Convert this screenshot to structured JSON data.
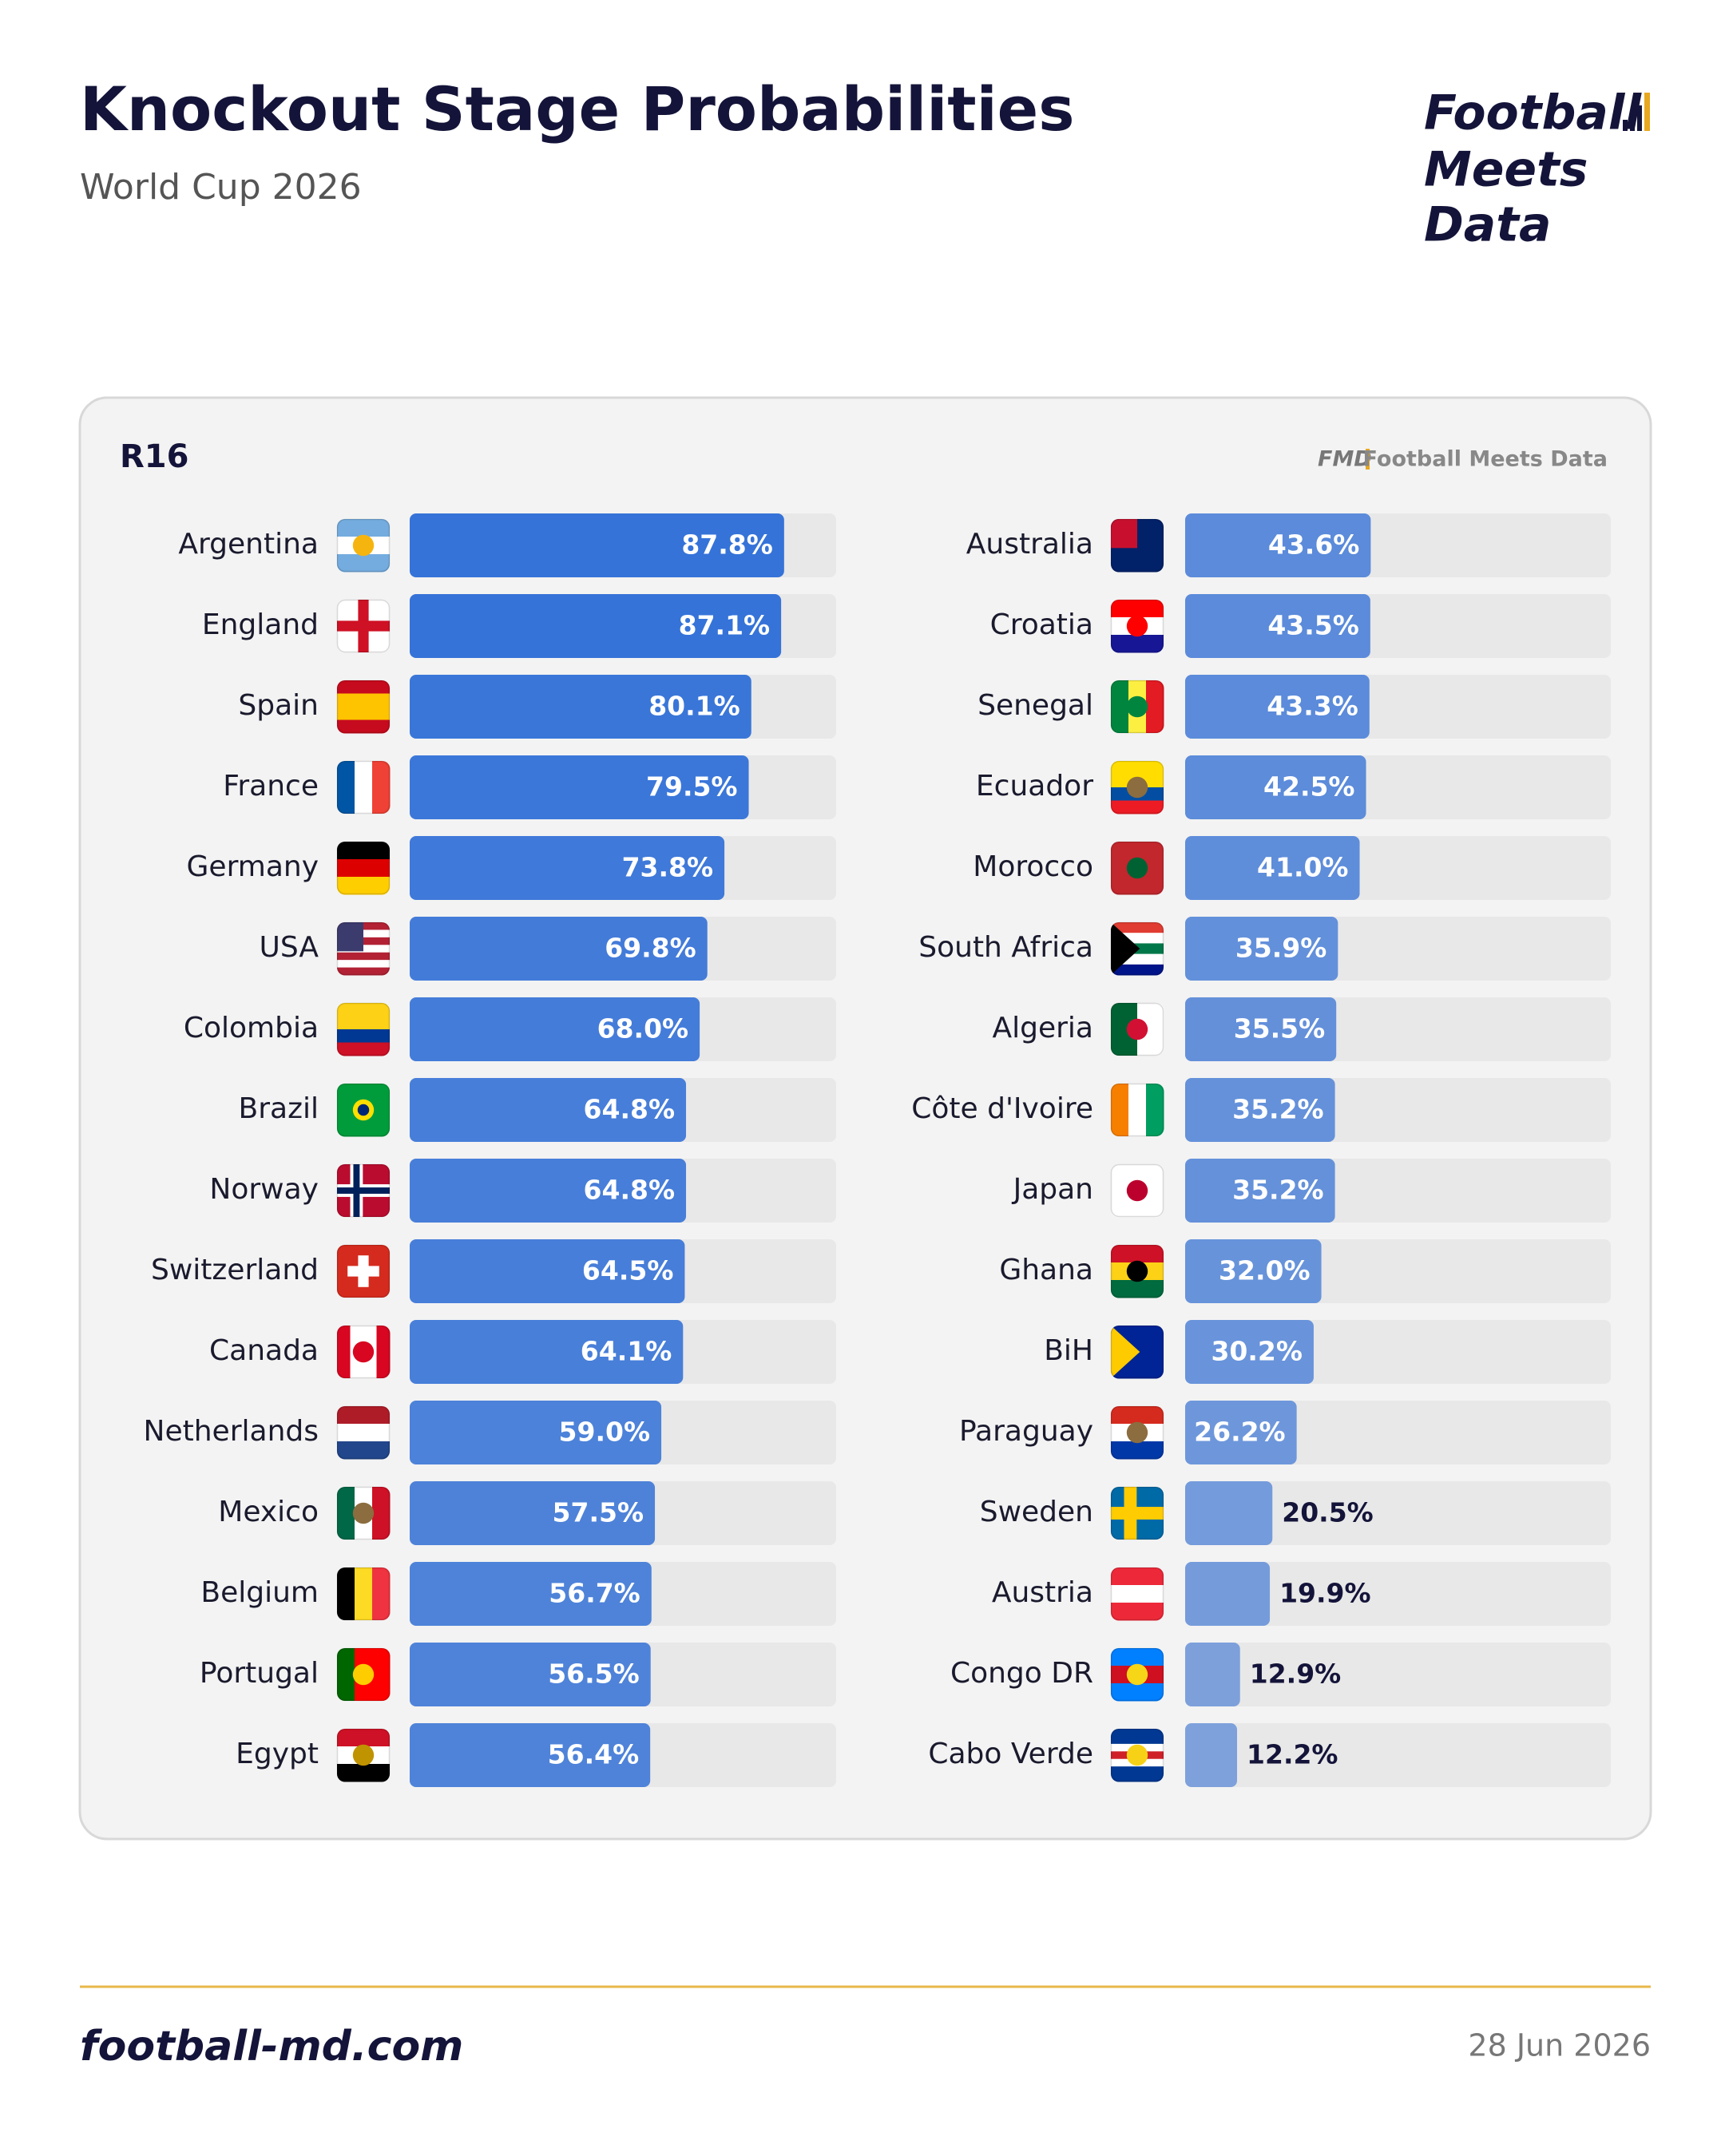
{
  "header": {
    "title": "Knockout Stage Probabilities",
    "subtitle": "World Cup 2026",
    "logo": [
      "Football",
      "Meets",
      "Data"
    ]
  },
  "chart_data": {
    "type": "bar",
    "orientation": "horizontal",
    "title": "R16",
    "watermark_mark": "FMD",
    "watermark": "Football Meets Data",
    "categories": [
      "Argentina",
      "England",
      "Spain",
      "France",
      "Germany",
      "USA",
      "Colombia",
      "Brazil",
      "Norway",
      "Switzerland",
      "Canada",
      "Netherlands",
      "Mexico",
      "Belgium",
      "Portugal",
      "Egypt",
      "Australia",
      "Croatia",
      "Senegal",
      "Ecuador",
      "Morocco",
      "South Africa",
      "Algeria",
      "Côte d'Ivoire",
      "Japan",
      "Ghana",
      "BiH",
      "Paraguay",
      "Sweden",
      "Austria",
      "Congo DR",
      "Cabo Verde"
    ],
    "values": [
      87.8,
      87.1,
      80.1,
      79.5,
      73.8,
      69.8,
      68.0,
      64.8,
      64.8,
      64.5,
      64.1,
      59.0,
      57.5,
      56.7,
      56.5,
      56.4,
      43.6,
      43.5,
      43.3,
      42.5,
      41.0,
      35.9,
      35.5,
      35.2,
      35.2,
      32.0,
      30.2,
      26.2,
      20.5,
      19.9,
      12.9,
      12.2
    ],
    "value_labels": [
      "87.8%",
      "87.1%",
      "80.1%",
      "79.5%",
      "73.8%",
      "69.8%",
      "68.0%",
      "64.8%",
      "64.8%",
      "64.5%",
      "64.1%",
      "59.0%",
      "57.5%",
      "56.7%",
      "56.5%",
      "56.4%",
      "43.6%",
      "43.5%",
      "43.3%",
      "42.5%",
      "41.0%",
      "35.9%",
      "35.5%",
      "35.2%",
      "35.2%",
      "32.0%",
      "30.2%",
      "26.2%",
      "20.5%",
      "19.9%",
      "12.9%",
      "12.2%"
    ],
    "xlim": [
      0,
      100
    ],
    "color": "#2f6fd8",
    "track_color": "#e8e8e8"
  },
  "footer": {
    "site": "football-md.com",
    "date": "28 Jun 2026"
  }
}
